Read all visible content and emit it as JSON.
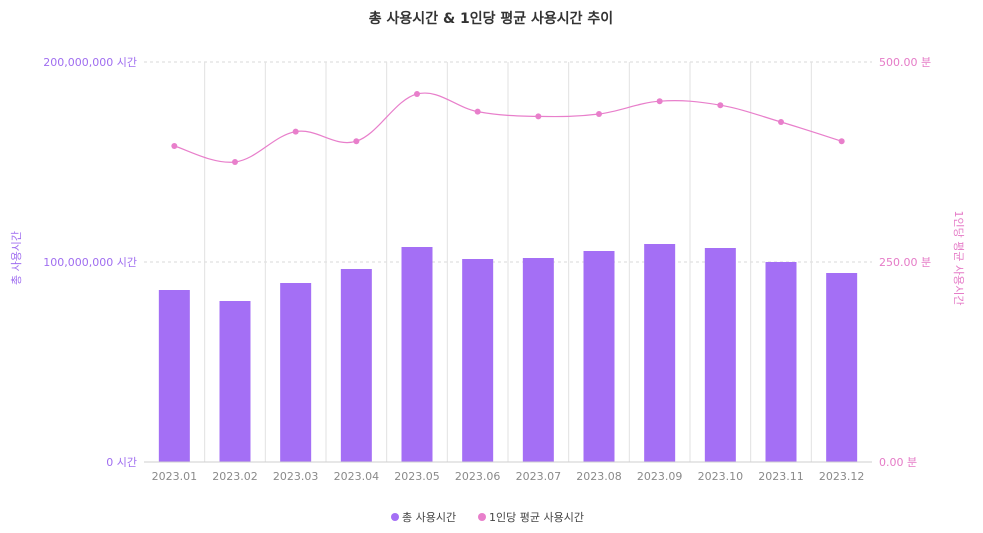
{
  "chart_data": {
    "type": "bar",
    "title": "총 사용시간 & 1인당 평균 사용시간 추이",
    "categories": [
      "2023.01",
      "2023.02",
      "2023.03",
      "2023.04",
      "2023.05",
      "2023.06",
      "2023.07",
      "2023.08",
      "2023.09",
      "2023.10",
      "2023.11",
      "2023.12"
    ],
    "series": [
      {
        "name": "총 사용시간",
        "type": "bar",
        "axis": "left",
        "color": "#a46ff5",
        "values": [
          86000000,
          80500000,
          89500000,
          96500000,
          107500000,
          101500000,
          102000000,
          105500000,
          109000000,
          107000000,
          100000000,
          94500000
        ]
      },
      {
        "name": "1인당 평균 사용시간",
        "type": "line",
        "axis": "right",
        "color": "#e87fcb",
        "values": [
          395,
          375,
          413,
          401,
          460,
          438,
          432,
          435,
          451,
          446,
          425,
          401
        ]
      }
    ],
    "ylabel_left": "총 사용시간",
    "ylabel_right": "1인당 평균 사용시간",
    "ylim_left": [
      0,
      200000000
    ],
    "ylim_right": [
      0,
      500
    ],
    "yticks_left": [
      "0 시간",
      "100,000,000 시간",
      "200,000,000 시간"
    ],
    "yticks_right": [
      "0.00 분",
      "250.00 분",
      "500.00 분"
    ],
    "grid": true,
    "legend": "bottom-center"
  }
}
